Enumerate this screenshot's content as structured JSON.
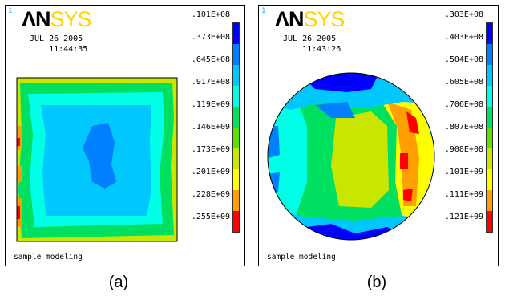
{
  "panels": [
    {
      "logo": {
        "an": "ΛN",
        "sys": "SYS"
      },
      "frame_number": "1",
      "date": "JUL 26 2005",
      "time": "11:44:35",
      "legend_labels": [
        ".101E+08",
        ".373E+08",
        ".645E+08",
        ".917E+08",
        ".119E+09",
        ".146E+09",
        ".173E+09",
        ".201E+09",
        ".228E+09",
        ".255E+09"
      ],
      "footer": "sample modeling",
      "caption": "(a)"
    },
    {
      "logo": {
        "an": "ΛN",
        "sys": "SYS"
      },
      "frame_number": "1",
      "date": "JUL 26 2005",
      "time": "11:43:26",
      "legend_labels": [
        ".303E+08",
        ".403E+08",
        ".504E+08",
        ".605E+08",
        ".706E+08",
        ".807E+08",
        ".908E+08",
        ".101E+09",
        ".111E+09",
        ".121E+09"
      ],
      "footer": "sample modeling",
      "caption": "(b)"
    }
  ],
  "colors": {
    "contour_scale": [
      "#0000ff",
      "#0080ff",
      "#00c8ff",
      "#00ffe6",
      "#00e060",
      "#60e000",
      "#c8e600",
      "#ffff00",
      "#ffa000",
      "#ff0000"
    ],
    "frame_number": "#22aaff",
    "logo_sys": "#ffd400"
  }
}
